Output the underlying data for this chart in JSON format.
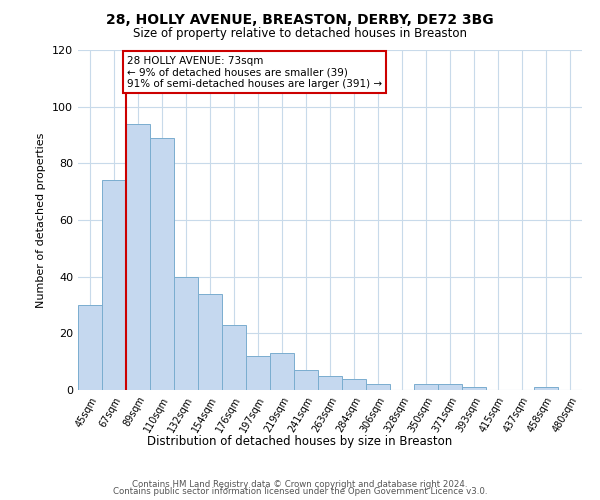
{
  "title": "28, HOLLY AVENUE, BREASTON, DERBY, DE72 3BG",
  "subtitle": "Size of property relative to detached houses in Breaston",
  "xlabel": "Distribution of detached houses by size in Breaston",
  "ylabel": "Number of detached properties",
  "categories": [
    "45sqm",
    "67sqm",
    "89sqm",
    "110sqm",
    "132sqm",
    "154sqm",
    "176sqm",
    "197sqm",
    "219sqm",
    "241sqm",
    "263sqm",
    "284sqm",
    "306sqm",
    "328sqm",
    "350sqm",
    "371sqm",
    "393sqm",
    "415sqm",
    "437sqm",
    "458sqm",
    "480sqm"
  ],
  "values": [
    30,
    74,
    94,
    89,
    40,
    34,
    23,
    12,
    13,
    7,
    5,
    4,
    2,
    0,
    2,
    2,
    1,
    0,
    0,
    1,
    0
  ],
  "bar_color": "#c5d8ef",
  "bar_edge_color": "#7aadcf",
  "vline_x": 1.5,
  "vline_color": "#cc0000",
  "annotation_text": "28 HOLLY AVENUE: 73sqm\n← 9% of detached houses are smaller (39)\n91% of semi-detached houses are larger (391) →",
  "annotation_box_color": "#ffffff",
  "annotation_box_edge_color": "#cc0000",
  "ylim": [
    0,
    120
  ],
  "yticks": [
    0,
    20,
    40,
    60,
    80,
    100,
    120
  ],
  "bg_color": "#ffffff",
  "grid_color": "#c8daea",
  "footer_line1": "Contains HM Land Registry data © Crown copyright and database right 2024.",
  "footer_line2": "Contains public sector information licensed under the Open Government Licence v3.0."
}
